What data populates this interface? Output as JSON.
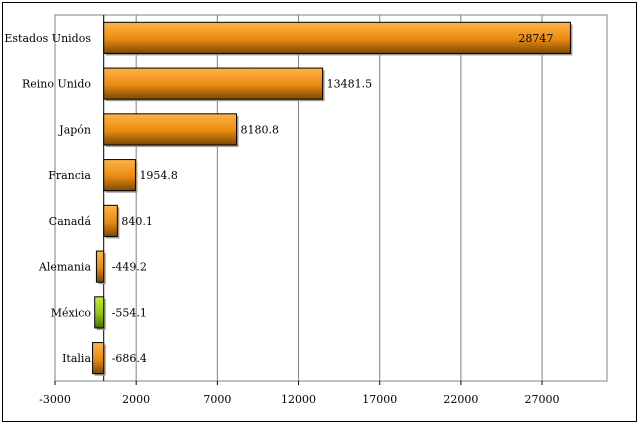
{
  "chart_data": {
    "type": "bar",
    "orientation": "horizontal",
    "categories": [
      "Estados Unidos",
      "Reino Unido",
      "Japón",
      "Francia",
      "Canadá",
      "Alemania",
      "México",
      "Italia"
    ],
    "values": [
      28747,
      13481.5,
      8180.8,
      1954.8,
      840.1,
      -449.2,
      -554.1,
      -686.4
    ],
    "value_labels": [
      "28747",
      "13481.5",
      "8180.8",
      "1954.8",
      "840.1",
      "-449.2",
      "-554.1",
      "-686.4"
    ],
    "bar_colors": [
      "#f39a1e",
      "#f39a1e",
      "#f39a1e",
      "#f39a1e",
      "#f39a1e",
      "#f39a1e",
      "#9acd1a",
      "#f39a1e"
    ],
    "xlim": [
      -3000,
      31000
    ],
    "xticks": [
      -3000,
      2000,
      7000,
      12000,
      17000,
      22000,
      27000
    ],
    "xtick_labels": [
      "-3000",
      "2000",
      "7000",
      "12000",
      "17000",
      "22000",
      "27000"
    ],
    "grid": "vertical",
    "legend": "none",
    "title": "",
    "xlabel": "",
    "ylabel": ""
  }
}
